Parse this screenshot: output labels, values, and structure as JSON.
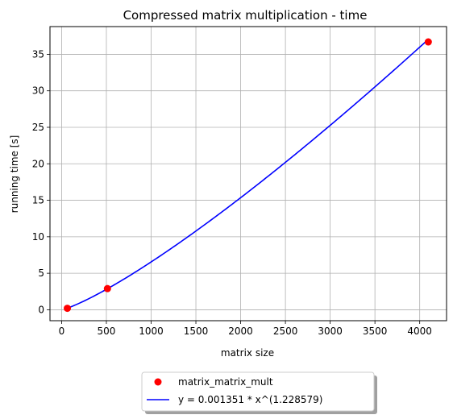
{
  "chart_data": {
    "type": "scatter",
    "title": "Compressed matrix multiplication - time",
    "xlabel": "matrix size",
    "ylabel": "running time [s]",
    "xlim": [
      -130,
      4300
    ],
    "ylim": [
      -1.5,
      38.8
    ],
    "xticks": [
      0,
      500,
      1000,
      1500,
      2000,
      2500,
      3000,
      3500,
      4000
    ],
    "yticks": [
      0,
      5,
      10,
      15,
      20,
      25,
      30,
      35
    ],
    "grid": true,
    "series": [
      {
        "name": "matrix_matrix_mult",
        "kind": "points",
        "color": "#ff0000",
        "x": [
          64,
          512,
          4096
        ],
        "y": [
          0.2,
          2.9,
          36.7
        ]
      },
      {
        "name": "y = 0.001351 * x^(1.228579)",
        "kind": "curve",
        "color": "#0000ff",
        "coef": 0.001351,
        "exponent": 1.228579,
        "x_range": [
          64,
          4096
        ]
      }
    ],
    "legend": {
      "placement": "bottom-center, below axes",
      "shadow": true
    }
  }
}
